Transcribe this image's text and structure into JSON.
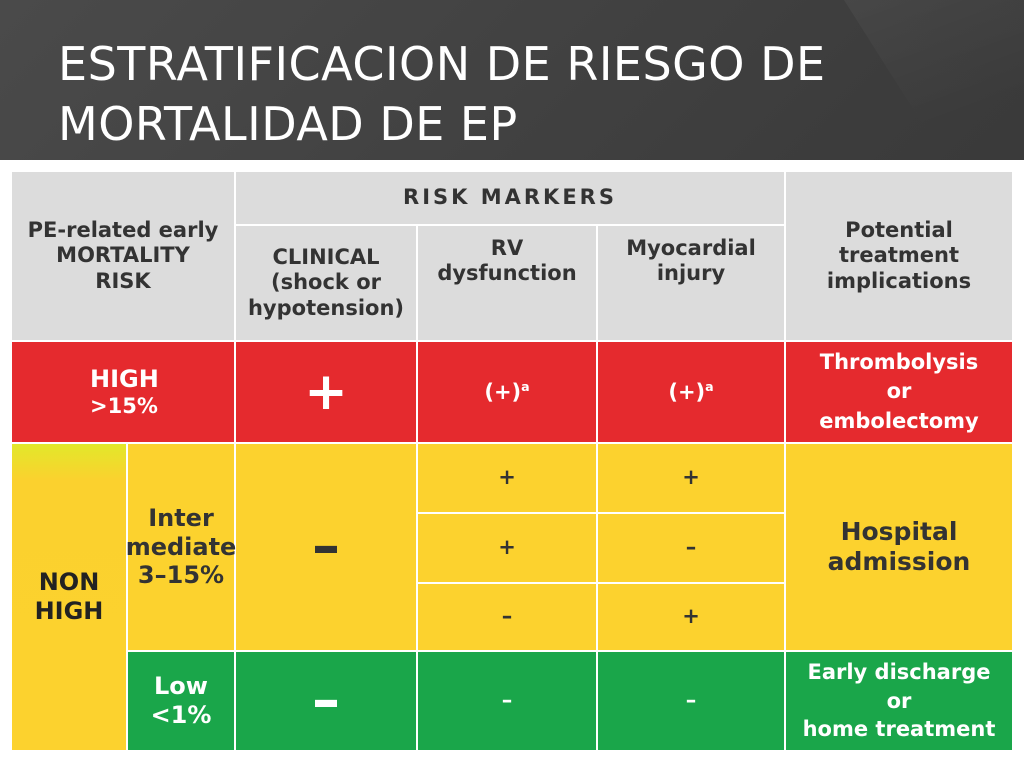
{
  "slide": {
    "title_line1": "ESTRATIFICACION DE RIESGO DE",
    "title_line2": "MORTALIDAD DE EP"
  },
  "table": {
    "header": {
      "mortality_risk": [
        "PE-related early",
        "MORTALITY",
        "RISK"
      ],
      "risk_markers": "RISK MARKERS",
      "clinical": [
        "CLINICAL",
        "(shock or",
        "hypotension)"
      ],
      "rv": [
        "RV",
        "dysfunction"
      ],
      "myocardial": [
        "Myocardial",
        "injury"
      ],
      "treatment": [
        "Potential",
        "treatment",
        "implications"
      ]
    },
    "high": {
      "label": "HIGH",
      "range": ">15%",
      "clinical": "+",
      "rv": "(+)",
      "rv_sup": "a",
      "myocardial": "(+)",
      "myocardial_sup": "a",
      "treatment": [
        "Thrombolysis",
        "or",
        "embolectomy"
      ]
    },
    "non_high": {
      "label": [
        "NON",
        "HIGH"
      ],
      "intermediate": {
        "label": [
          "Inter",
          "mediate",
          "3–15%"
        ],
        "clinical": "–",
        "rows": [
          {
            "rv": "+",
            "myocardial": "+"
          },
          {
            "rv": "+",
            "myocardial": "–"
          },
          {
            "rv": "–",
            "myocardial": "+"
          }
        ],
        "treatment": [
          "Hospital",
          "admission"
        ]
      },
      "low": {
        "label": [
          "Low",
          "<1%"
        ],
        "clinical": "–",
        "rv": "–",
        "myocardial": "–",
        "treatment": [
          "Early discharge",
          "or",
          "home treatment"
        ]
      }
    }
  },
  "colors": {
    "header": "#dcdcdc",
    "high": "#e52a2e",
    "intermediate": "#fcd22e",
    "low": "#1aa64a",
    "slide_background": "#3a3a3a"
  }
}
